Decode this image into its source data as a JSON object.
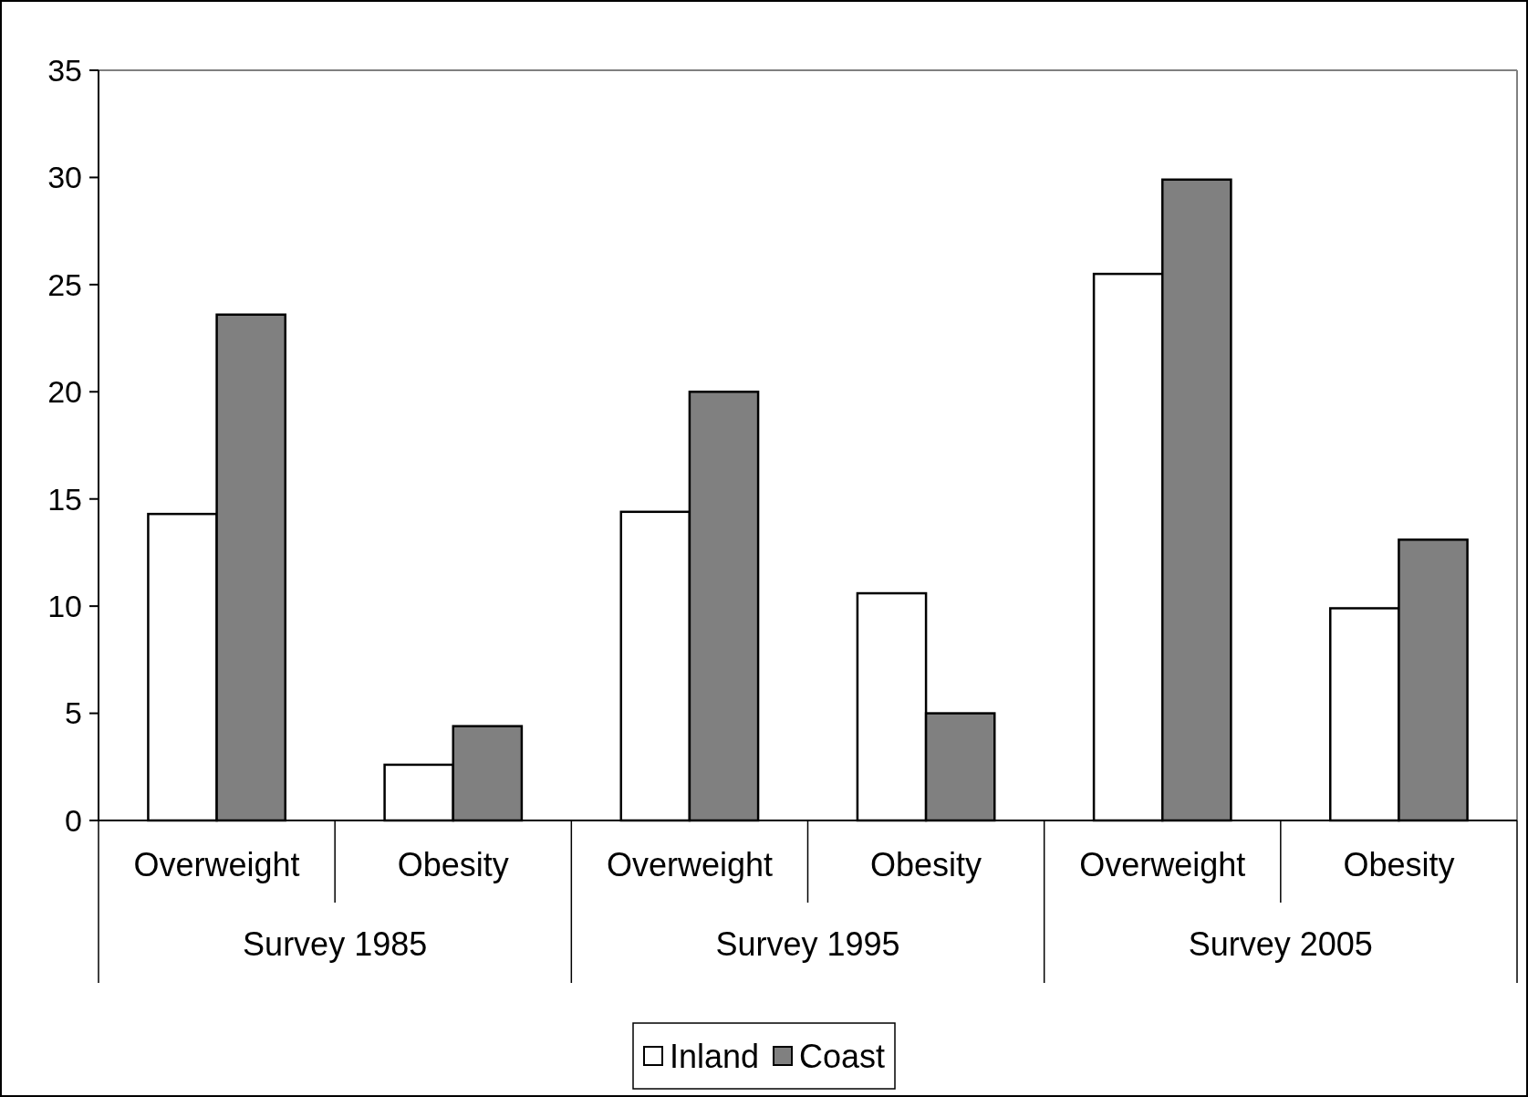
{
  "chart_data": {
    "type": "bar",
    "categories": [
      "Overweight",
      "Obesity",
      "Overweight",
      "Obesity",
      "Overweight",
      "Obesity"
    ],
    "annotations": [
      "Survey 1985",
      "Survey 1995",
      "Survey 2005"
    ],
    "series": [
      {
        "name": "Inland",
        "color": "#ffffff",
        "values": [
          14.3,
          2.6,
          14.4,
          10.6,
          25.5,
          9.9
        ]
      },
      {
        "name": "Coast",
        "color": "#808080",
        "values": [
          23.6,
          4.4,
          20,
          5,
          29.9,
          13.1
        ]
      }
    ],
    "ylim": [
      0,
      35
    ],
    "yticks": [
      0,
      5,
      10,
      15,
      20,
      25,
      30,
      35
    ],
    "grid": false,
    "legend": "bottom"
  }
}
